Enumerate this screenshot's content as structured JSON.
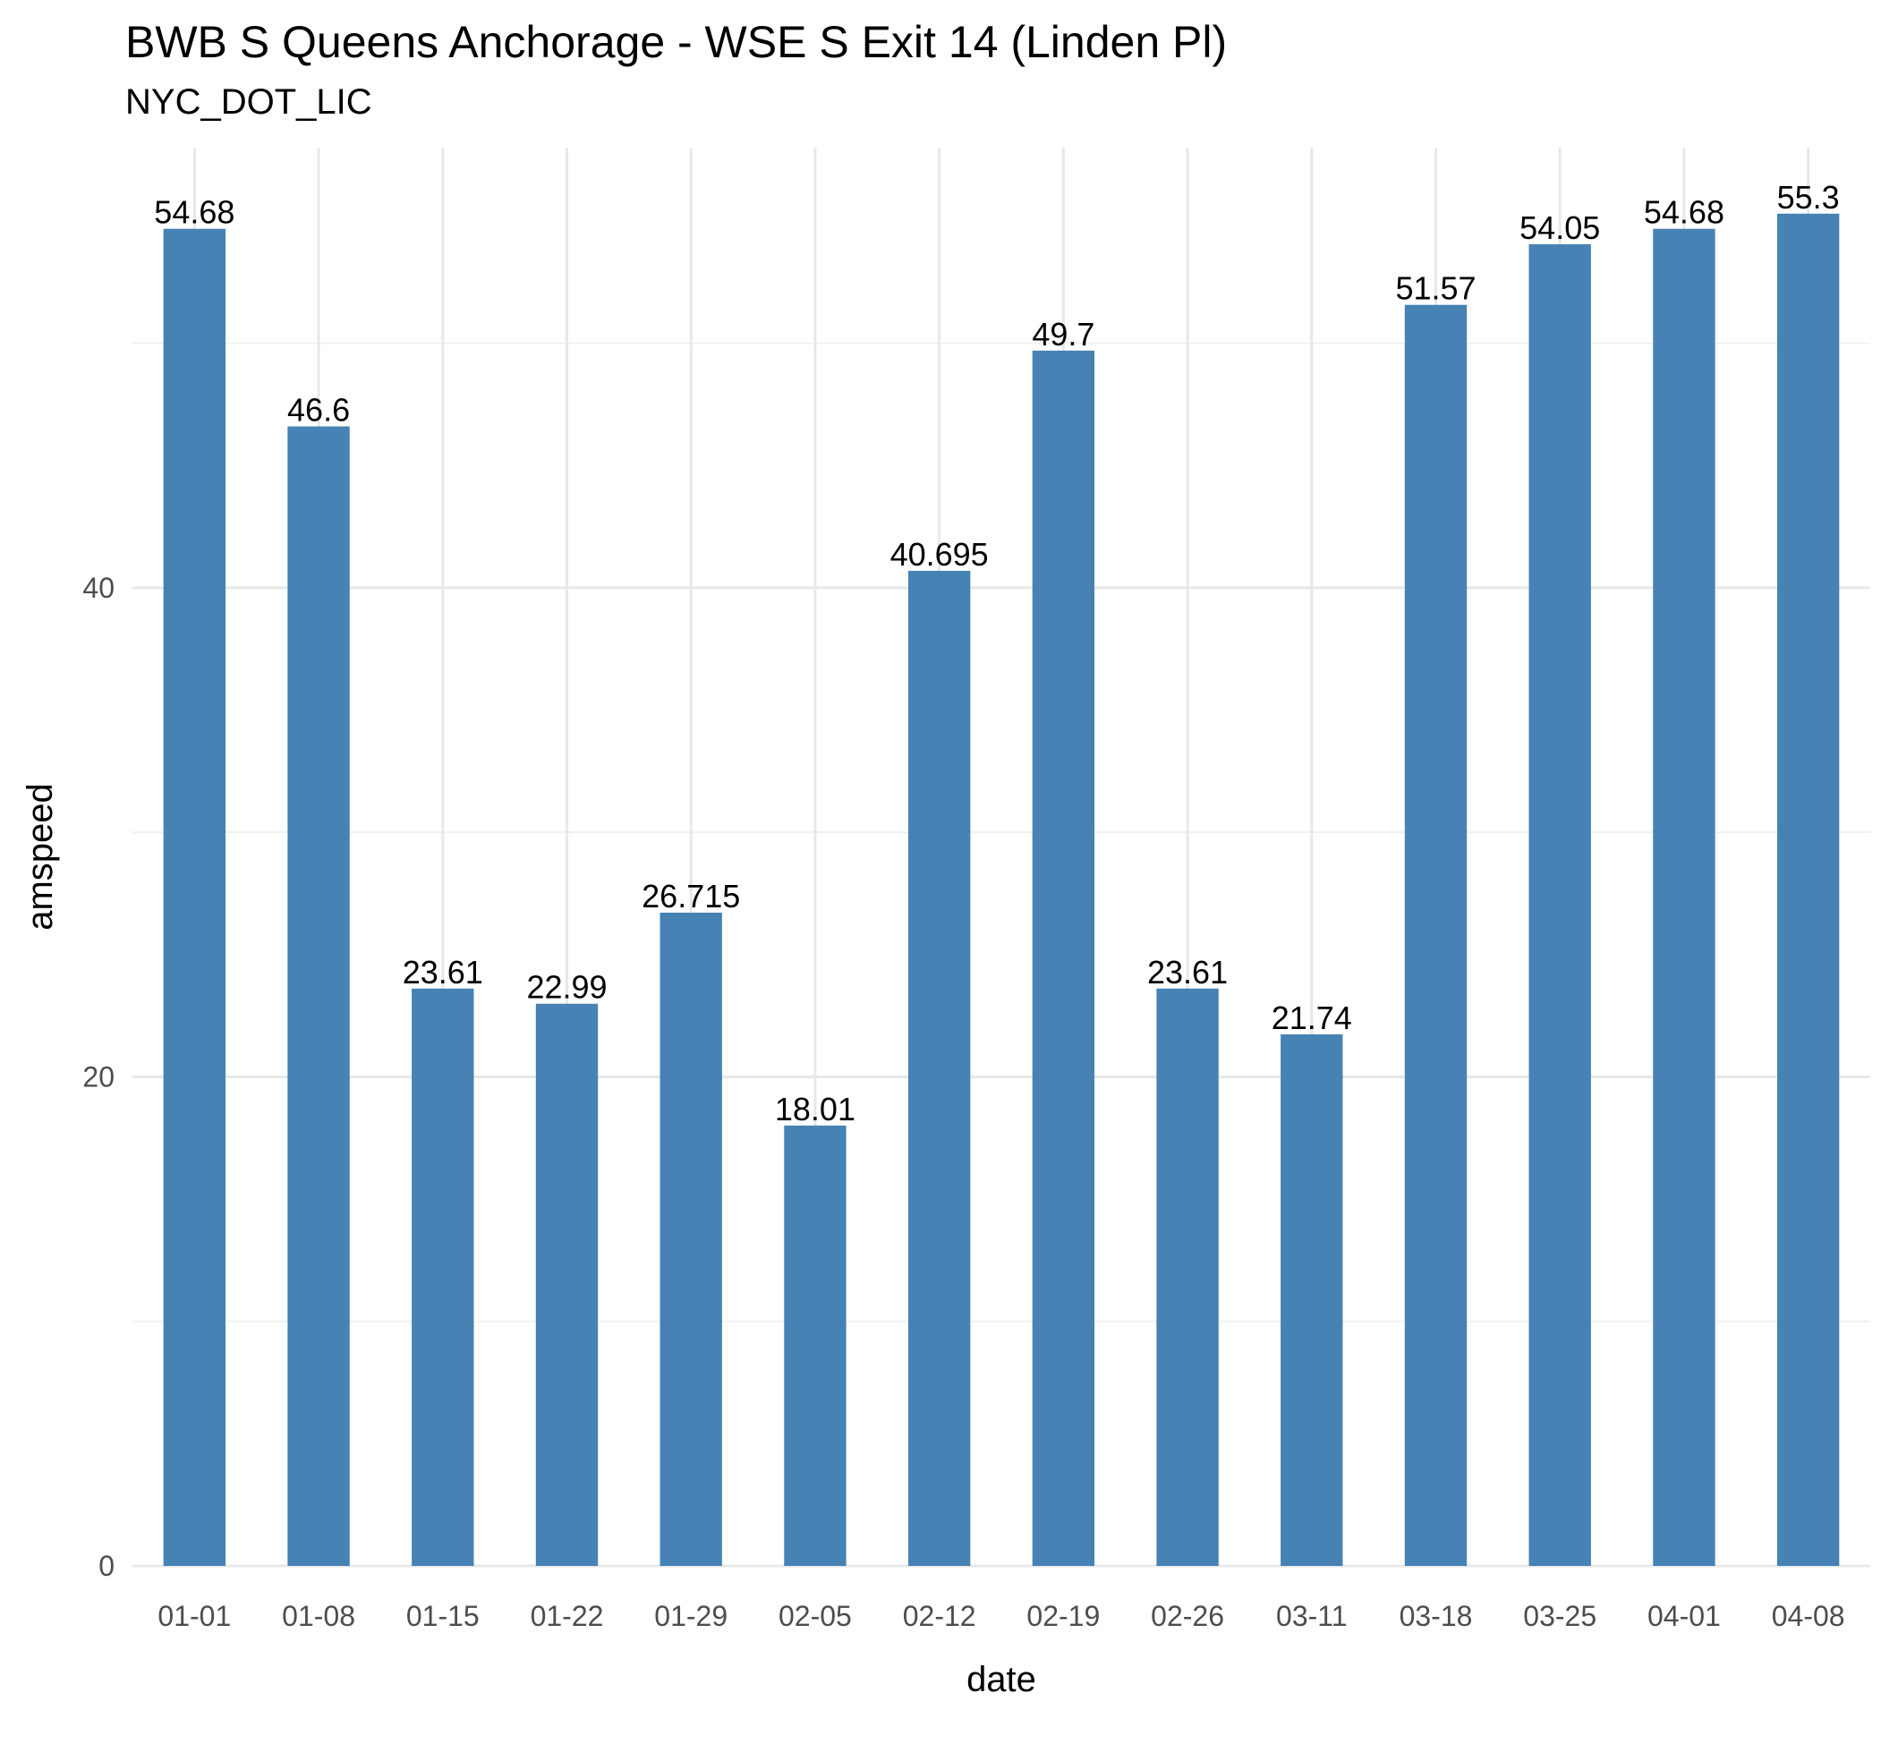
{
  "chart_data": {
    "type": "bar",
    "title": "BWB S Queens Anchorage - WSE S Exit 14 (Linden Pl)",
    "subtitle": "NYC_DOT_LIC",
    "xlabel": "date",
    "ylabel": "amspeed",
    "categories": [
      "01-01",
      "01-08",
      "01-15",
      "01-22",
      "01-29",
      "02-05",
      "02-12",
      "02-19",
      "02-26",
      "03-11",
      "03-18",
      "03-25",
      "04-01",
      "04-08"
    ],
    "values": [
      54.68,
      46.6,
      23.61,
      22.99,
      26.715,
      18.01,
      40.695,
      49.7,
      23.61,
      21.74,
      51.57,
      54.05,
      54.68,
      55.3
    ],
    "value_labels": [
      "54.68",
      "46.6",
      "23.61",
      "22.99",
      "26.715",
      "18.01",
      "40.695",
      "49.7",
      "23.61",
      "21.74",
      "51.57",
      "54.05",
      "54.68",
      "55.3"
    ],
    "y_ticks": [
      0,
      20,
      40
    ],
    "ylim": [
      0,
      58
    ],
    "grid": true,
    "bar_color": "#4682B4"
  }
}
